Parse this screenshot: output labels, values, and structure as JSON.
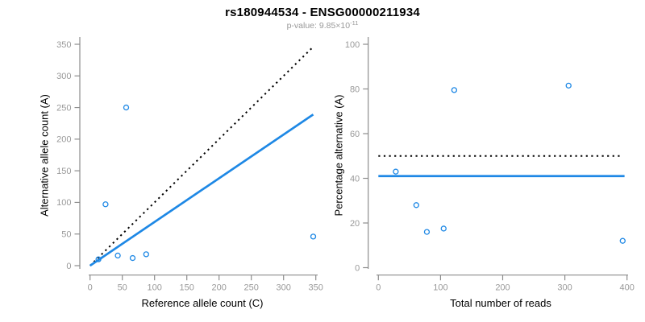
{
  "header": {
    "title": "rs180944534 - ENSG00000211934",
    "subtitle_base": "p-value: 9.85×10",
    "subtitle_exponent": "-11"
  },
  "colors": {
    "accent_blue": "#1E88E5",
    "axis": "#8C8C8C",
    "tick_label": "#999999",
    "dotted_line": "#000000",
    "subtitle": "#999999"
  },
  "chart_data": [
    {
      "type": "scatter",
      "panel": "left",
      "xlabel": "Reference allele count (C)",
      "ylabel": "Alternative allele count (A)",
      "xlim": [
        0,
        350
      ],
      "ylim": [
        0,
        350
      ],
      "xticks": [
        0,
        50,
        100,
        150,
        200,
        250,
        300,
        350
      ],
      "yticks": [
        0,
        50,
        100,
        150,
        200,
        250,
        300,
        350
      ],
      "grid": false,
      "points": [
        [
          13,
          10
        ],
        [
          24,
          97
        ],
        [
          43,
          16
        ],
        [
          56,
          250
        ],
        [
          66,
          12
        ],
        [
          87,
          18
        ],
        [
          346,
          46
        ]
      ],
      "lines": [
        {
          "name": "identity-line",
          "style": "dotted",
          "color": "#000000",
          "from": [
            0,
            0
          ],
          "to": [
            347,
            347
          ]
        },
        {
          "name": "regression-line",
          "style": "solid",
          "color": "#1E88E5",
          "from": [
            0,
            0
          ],
          "to": [
            346,
            239
          ]
        }
      ]
    },
    {
      "type": "scatter",
      "panel": "right",
      "xlabel": "Total number of reads",
      "ylabel": "Percentage alternative (A)",
      "xlim": [
        0,
        400
      ],
      "ylim": [
        0,
        100
      ],
      "xticks": [
        0,
        100,
        200,
        300,
        400
      ],
      "yticks": [
        0,
        20,
        40,
        60,
        80,
        100
      ],
      "grid": false,
      "points": [
        [
          28,
          43
        ],
        [
          61,
          28
        ],
        [
          78,
          16
        ],
        [
          105,
          17.5
        ],
        [
          122,
          79.5
        ],
        [
          306,
          81.5
        ],
        [
          393,
          12
        ]
      ],
      "lines": [
        {
          "name": "fifty-percent-line",
          "style": "dotted",
          "color": "#000000",
          "from": [
            0,
            50
          ],
          "to": [
            390,
            50
          ]
        },
        {
          "name": "mean-percentage-line",
          "style": "solid",
          "color": "#1E88E5",
          "from": [
            0,
            41
          ],
          "to": [
            396,
            41
          ]
        }
      ]
    }
  ]
}
